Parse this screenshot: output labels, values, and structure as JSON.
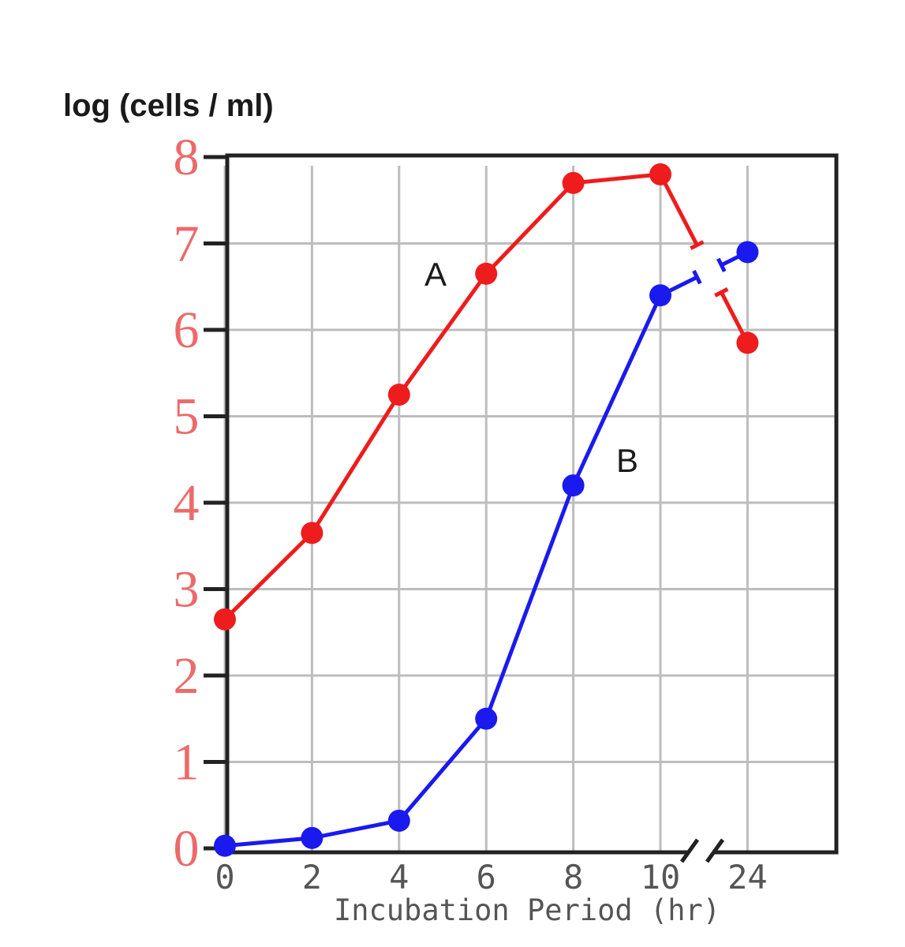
{
  "chart_data": {
    "type": "line",
    "title": "",
    "ylabel": "log (cells / ml)",
    "xlabel": "Incubation Period (hr)",
    "ylim": [
      0,
      8
    ],
    "yticks": [
      "0",
      "1",
      "2",
      "3",
      "4",
      "5",
      "6",
      "7",
      "8"
    ],
    "xticks": [
      "0",
      "2",
      "4",
      "6",
      "8",
      "10",
      "24"
    ],
    "x_axis_break": "between 10 and 24",
    "grid": true,
    "colors": {
      "A": "#ee1c1c",
      "B": "#1a1aee",
      "ytick": "#ec6a6a",
      "axis": "#222222",
      "grid": "#bdbdbd"
    },
    "series": [
      {
        "name": "A",
        "x": [
          0,
          2,
          4,
          6,
          8,
          10,
          24
        ],
        "y": [
          2.65,
          3.65,
          5.25,
          6.65,
          7.7,
          7.8,
          5.85
        ]
      },
      {
        "name": "B",
        "x": [
          0,
          2,
          4,
          6,
          8,
          10,
          24
        ],
        "y": [
          0.03,
          0.12,
          0.32,
          1.5,
          4.2,
          6.4,
          6.9
        ]
      }
    ]
  }
}
